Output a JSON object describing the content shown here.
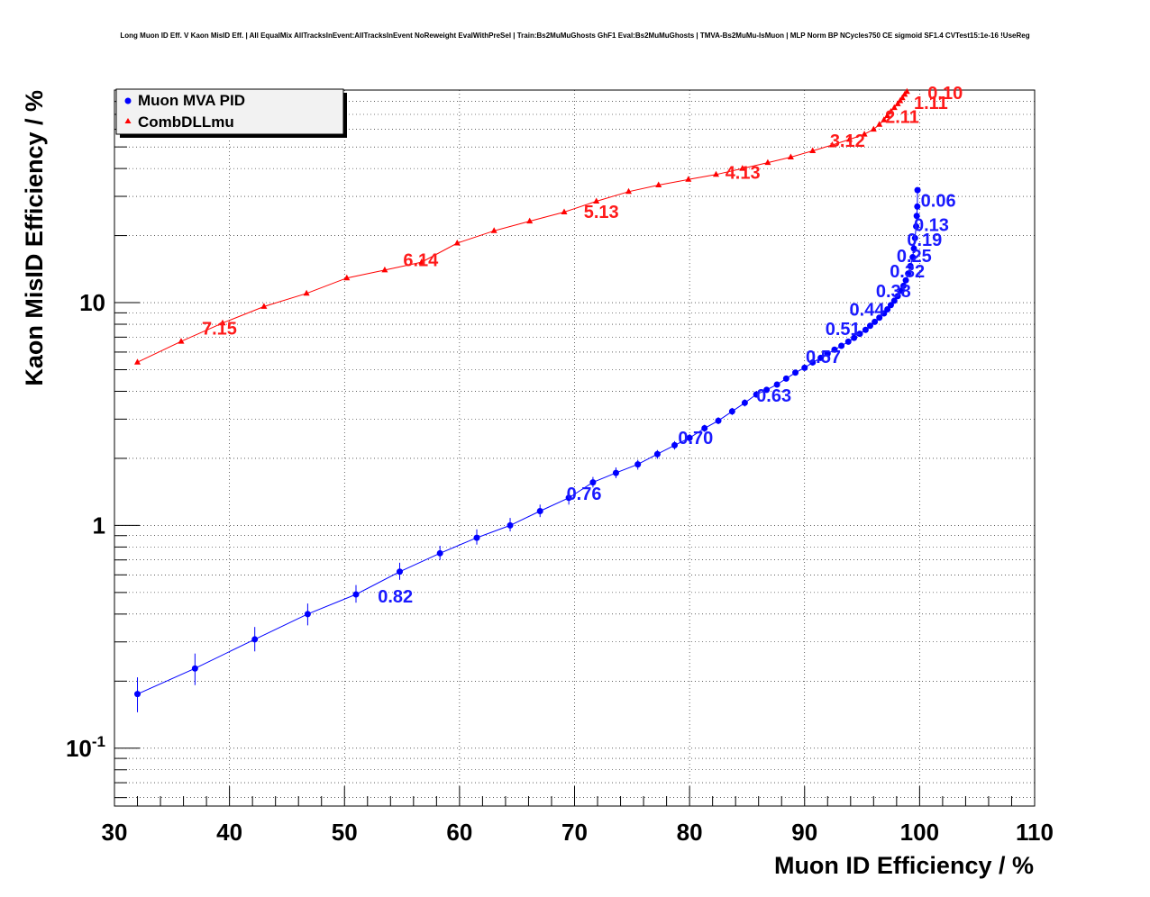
{
  "colors": {
    "muon": "#0000ff",
    "comb": "#ff0000",
    "grid": "#000000",
    "background": "#ffffff"
  },
  "chart_data": {
    "type": "line",
    "title": "Long Muon ID Eff. V Kaon MisID Eff. | All EqualMix AllTracksInEvent:AllTracksInEvent NoReweight EvalWithPreSel | Train:Bs2MuMuGhosts GhF1 Eval:Bs2MuMuGhosts | TMVA-Bs2MuMu-IsMuon | MLP Norm BP NCycles750 CE sigmoid SF1.4 CVTest15:1e-16 !UseReg",
    "xlabel": "Muon ID Efficiency / %",
    "ylabel": "Kaon MisID Efficiency / %",
    "xlim": [
      30,
      110
    ],
    "ylim": [
      0.055,
      90
    ],
    "yscale": "log",
    "grid": true,
    "legend_position": "top-left",
    "x_ticks": [
      "30",
      "40",
      "50",
      "60",
      "70",
      "80",
      "90",
      "100",
      "110"
    ],
    "x_tick_values": [
      30,
      40,
      50,
      60,
      70,
      80,
      90,
      100,
      110
    ],
    "y_ticks": [
      {
        "value": 0.1,
        "base": "10",
        "exp": "-1"
      },
      {
        "value": 1,
        "base": "1",
        "exp": ""
      },
      {
        "value": 10,
        "base": "10",
        "exp": ""
      }
    ],
    "series": [
      {
        "name": "Muon MVA PID",
        "marker": "circle",
        "color_key": "muon",
        "points": [
          [
            32.0,
            0.175
          ],
          [
            37.0,
            0.228
          ],
          [
            42.2,
            0.308
          ],
          [
            46.8,
            0.4
          ],
          [
            51.0,
            0.49
          ],
          [
            54.8,
            0.62
          ],
          [
            58.3,
            0.75
          ],
          [
            61.5,
            0.88
          ],
          [
            64.4,
            1.0
          ],
          [
            67.0,
            1.16
          ],
          [
            69.5,
            1.33
          ],
          [
            71.6,
            1.56
          ],
          [
            73.6,
            1.72
          ],
          [
            75.5,
            1.88
          ],
          [
            77.2,
            2.09
          ],
          [
            78.7,
            2.29
          ],
          [
            80.0,
            2.47
          ],
          [
            81.3,
            2.73
          ],
          [
            82.5,
            2.95
          ],
          [
            83.7,
            3.25
          ],
          [
            84.8,
            3.55
          ],
          [
            85.8,
            3.87
          ],
          [
            86.7,
            4.06
          ],
          [
            87.6,
            4.29
          ],
          [
            88.4,
            4.56
          ],
          [
            89.2,
            4.85
          ],
          [
            90.0,
            5.1
          ],
          [
            90.7,
            5.39
          ],
          [
            91.4,
            5.65
          ],
          [
            92.0,
            5.9
          ],
          [
            92.6,
            6.15
          ],
          [
            93.2,
            6.4
          ],
          [
            93.8,
            6.68
          ],
          [
            94.3,
            6.95
          ],
          [
            94.8,
            7.25
          ],
          [
            95.3,
            7.55
          ],
          [
            95.7,
            7.87
          ],
          [
            96.1,
            8.2
          ],
          [
            96.5,
            8.56
          ],
          [
            96.9,
            8.95
          ],
          [
            97.2,
            9.33
          ],
          [
            97.5,
            9.75
          ],
          [
            97.8,
            10.2
          ],
          [
            98.1,
            10.7
          ],
          [
            98.4,
            11.3
          ],
          [
            98.6,
            11.9
          ],
          [
            98.8,
            12.6
          ],
          [
            99.0,
            13.5
          ],
          [
            99.2,
            14.6
          ],
          [
            99.4,
            16.0
          ],
          [
            99.5,
            17.5
          ],
          [
            99.6,
            19.5
          ],
          [
            99.7,
            22.0
          ],
          [
            99.75,
            24.5
          ],
          [
            99.8,
            27.0
          ],
          [
            99.82,
            32.0
          ]
        ],
        "error_bars": [
          [
            32.0,
            0.145,
            0.208
          ],
          [
            37.0,
            0.192,
            0.266
          ],
          [
            42.2,
            0.272,
            0.35
          ],
          [
            46.8,
            0.356,
            0.446
          ],
          [
            51.0,
            0.45,
            0.54
          ],
          [
            54.8,
            0.57,
            0.68
          ],
          [
            58.3,
            0.7,
            0.81
          ],
          [
            61.5,
            0.82,
            0.96
          ],
          [
            64.4,
            0.94,
            1.08
          ],
          [
            67.0,
            1.09,
            1.24
          ],
          [
            69.5,
            1.24,
            1.42
          ],
          [
            71.6,
            1.48,
            1.65
          ],
          [
            73.6,
            1.63,
            1.82
          ],
          [
            75.5,
            1.78,
            1.97
          ],
          [
            77.2,
            1.99,
            2.18
          ],
          [
            78.7,
            2.19,
            2.39
          ],
          [
            80.0,
            2.37,
            2.57
          ],
          [
            81.3,
            2.63,
            2.83
          ],
          [
            82.5,
            2.85,
            3.06
          ],
          [
            83.7,
            3.13,
            3.37
          ],
          [
            84.8,
            3.42,
            3.68
          ],
          [
            85.8,
            3.74,
            3.99
          ]
        ],
        "labels": [
          {
            "text": "0.06",
            "x": 100.1,
            "y": 27.0
          },
          {
            "text": "0.13",
            "x": 99.5,
            "y": 21.0
          },
          {
            "text": "0.19",
            "x": 98.9,
            "y": 18.0
          },
          {
            "text": "0.25",
            "x": 98.0,
            "y": 15.2
          },
          {
            "text": "0.32",
            "x": 97.4,
            "y": 13.0
          },
          {
            "text": "0.38",
            "x": 96.2,
            "y": 10.6
          },
          {
            "text": "0.44",
            "x": 93.9,
            "y": 8.75
          },
          {
            "text": "0.51",
            "x": 91.8,
            "y": 7.15
          },
          {
            "text": "0.57",
            "x": 90.1,
            "y": 5.35
          },
          {
            "text": "0.63",
            "x": 85.8,
            "y": 3.6
          },
          {
            "text": "0.70",
            "x": 79.0,
            "y": 2.32
          },
          {
            "text": "0.76",
            "x": 69.3,
            "y": 1.3
          },
          {
            "text": "0.82",
            "x": 52.9,
            "y": 0.45
          }
        ]
      },
      {
        "name": "CombDLLmu",
        "marker": "triangle",
        "color_key": "comb",
        "points": [
          [
            32.0,
            5.4
          ],
          [
            35.8,
            6.7
          ],
          [
            39.4,
            8.1
          ],
          [
            43.0,
            9.6
          ],
          [
            46.7,
            11.0
          ],
          [
            50.2,
            12.9
          ],
          [
            53.5,
            14.0
          ],
          [
            56.7,
            15.2
          ],
          [
            59.8,
            18.5
          ],
          [
            63.0,
            21.0
          ],
          [
            66.1,
            23.2
          ],
          [
            69.1,
            25.5
          ],
          [
            71.9,
            28.5
          ],
          [
            74.7,
            31.5
          ],
          [
            77.3,
            33.7
          ],
          [
            79.9,
            35.7
          ],
          [
            82.3,
            37.6
          ],
          [
            84.6,
            40.0
          ],
          [
            86.8,
            42.5
          ],
          [
            88.8,
            45.0
          ],
          [
            90.7,
            48.0
          ],
          [
            92.4,
            51.0
          ],
          [
            93.9,
            54.0
          ],
          [
            95.2,
            57.0
          ],
          [
            96.0,
            60.0
          ],
          [
            96.5,
            63.0
          ],
          [
            96.9,
            66.0
          ],
          [
            97.2,
            69.0
          ],
          [
            97.5,
            72.0
          ],
          [
            97.8,
            75.0
          ],
          [
            98.1,
            78.0
          ],
          [
            98.3,
            80.5
          ],
          [
            98.5,
            83.0
          ],
          [
            98.7,
            86.0
          ],
          [
            98.9,
            88.5
          ]
        ],
        "labels": [
          {
            "text": "0.10",
            "x": 100.7,
            "y": 82.0
          },
          {
            "text": "1.11",
            "x": 99.5,
            "y": 74.0
          },
          {
            "text": "2.11",
            "x": 97.0,
            "y": 64.0
          },
          {
            "text": "3.12",
            "x": 92.2,
            "y": 50.0
          },
          {
            "text": "4.13",
            "x": 83.1,
            "y": 36.0
          },
          {
            "text": "5.13",
            "x": 70.8,
            "y": 24.0
          },
          {
            "text": "6.14",
            "x": 55.1,
            "y": 14.6
          },
          {
            "text": "7.15",
            "x": 37.6,
            "y": 7.2
          }
        ]
      }
    ]
  }
}
